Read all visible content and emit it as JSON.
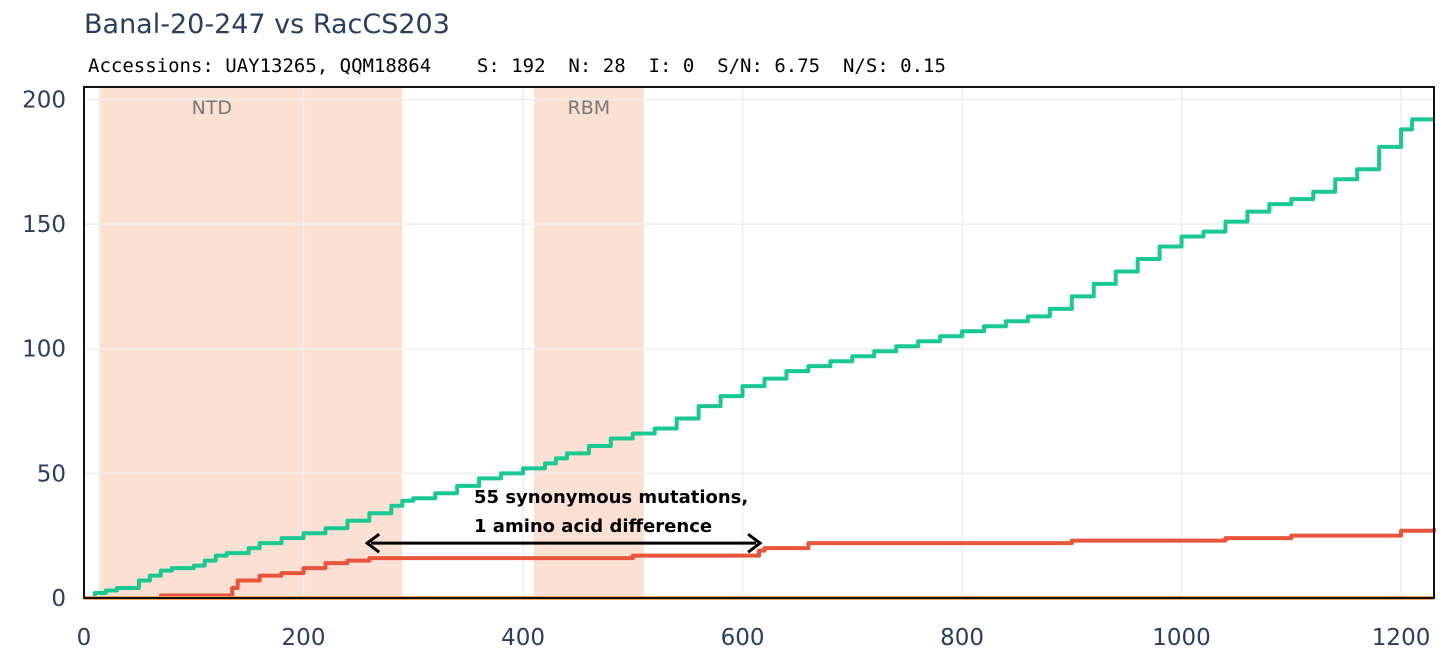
{
  "chart_data": {
    "type": "line",
    "title": "Banal-20-247 vs RacCS203",
    "subtitle": "Accessions: UAY13265, QQM18864    S: 192  N: 28  I: 0  S/N: 6.75  N/S: 0.15",
    "xlabel": "",
    "ylabel": "",
    "xlim": [
      0,
      1230
    ],
    "ylim": [
      0,
      205
    ],
    "x_ticks": [
      "0",
      "200",
      "400",
      "600",
      "800",
      "1000",
      "1200"
    ],
    "y_ticks": [
      "0",
      "50",
      "100",
      "150",
      "200"
    ],
    "grid": true,
    "legend": "none",
    "regions": [
      {
        "label": "NTD",
        "x0": 14,
        "x1": 290,
        "color": "#fde0d4"
      },
      {
        "label": "RBM",
        "x0": 410,
        "x1": 510,
        "color": "#fde0d4"
      }
    ],
    "annotation": {
      "lines": [
        "55 synonymous mutations,",
        "1 amino acid difference"
      ],
      "arrow_x": [
        258,
        616
      ],
      "arrow_y": 22
    },
    "series": [
      {
        "color": "#19c994",
        "x": [
          0,
          10,
          20,
          30,
          50,
          60,
          70,
          80,
          100,
          110,
          120,
          130,
          150,
          160,
          180,
          200,
          220,
          240,
          260,
          280,
          290,
          300,
          320,
          340,
          360,
          380,
          400,
          420,
          430,
          440,
          460,
          480,
          500,
          520,
          540,
          560,
          580,
          600,
          620,
          640,
          660,
          680,
          700,
          720,
          740,
          760,
          780,
          800,
          820,
          840,
          860,
          880,
          900,
          920,
          940,
          960,
          980,
          1000,
          1020,
          1040,
          1060,
          1080,
          1100,
          1120,
          1140,
          1160,
          1180,
          1200,
          1210,
          1230
        ],
        "values": [
          0,
          2,
          3,
          4,
          7,
          9,
          11,
          12,
          13,
          15,
          17,
          18,
          20,
          22,
          24,
          26,
          28,
          31,
          34,
          37,
          39,
          40,
          42,
          45,
          48,
          50,
          52,
          54,
          56,
          58,
          61,
          64,
          66,
          68,
          72,
          77,
          81,
          85,
          88,
          91,
          93,
          95,
          97,
          99,
          101,
          103,
          105,
          107,
          109,
          111,
          113,
          116,
          121,
          126,
          131,
          136,
          141,
          145,
          147,
          151,
          155,
          158,
          160,
          163,
          168,
          172,
          181,
          188,
          192,
          192
        ]
      },
      {
        "color": "#e8553b",
        "x": [
          0,
          70,
          130,
          135,
          140,
          160,
          180,
          200,
          220,
          240,
          260,
          300,
          400,
          500,
          610,
          615,
          620,
          660,
          700,
          800,
          900,
          1000,
          1040,
          1100,
          1200,
          1230
        ],
        "values": [
          0,
          1,
          1,
          4,
          7,
          9,
          10,
          12,
          14,
          15,
          16,
          16,
          16,
          17,
          17,
          19,
          20,
          22,
          22,
          22,
          23,
          23,
          24,
          25,
          27,
          28
        ]
      },
      {
        "color": "#f2a45c",
        "x": [
          0,
          1230
        ],
        "values": [
          0,
          0
        ]
      }
    ]
  }
}
